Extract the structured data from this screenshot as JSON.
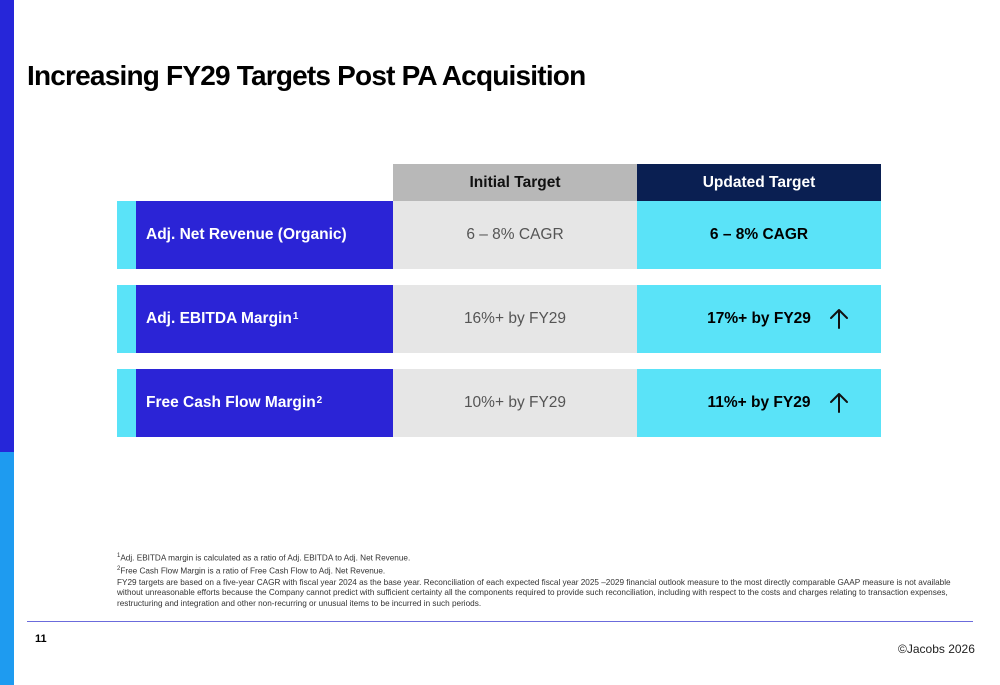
{
  "title": "Increasing FY29 Targets Post PA Acquisition",
  "columns": {
    "initial": "Initial Target",
    "updated": "Updated Target"
  },
  "rows": [
    {
      "label": "Adj. Net Revenue (Organic)",
      "sup": "",
      "initial": "6 – 8% CAGR",
      "updated": "6 – 8% CAGR",
      "arrow": false
    },
    {
      "label": "Adj. EBITDA Margin",
      "sup": "1",
      "initial": "16%+ by FY29",
      "updated": "17%+ by FY29",
      "arrow": true,
      "arrow_icon": "up-arrow-icon"
    },
    {
      "label": "Free Cash Flow Margin",
      "sup": "2",
      "initial": "10%+ by FY29",
      "updated": "11%+ by FY29",
      "arrow": true,
      "arrow_icon": "up-arrow-icon"
    }
  ],
  "footnotes": {
    "note1_mark": "1",
    "note1": "Adj. EBITDA margin is calculated as a ratio of Adj. EBITDA to Adj. Net Revenue.",
    "note2_mark": "2",
    "note2": "Free Cash Flow Margin is a ratio of Free Cash Flow to Adj. Net Revenue.",
    "note3": "FY29 targets are based on a five-year CAGR with fiscal year 2024 as the base year. Reconciliation of each expected fiscal year 2025 –2029 financial outlook measure to the most directly comparable GAAP measure is not available without unreasonable efforts because the Company cannot predict with sufficient certainty all the components required to provide such reconciliation, including with respect to the costs and charges relating to transaction expenses, restructuring and integration and other non-recurring or unusual items to be incurred in such periods."
  },
  "page_number": "11",
  "copyright": "©Jacobs 2026",
  "colors": {
    "brand_blue": "#2b24d6",
    "accent_cyan": "#5ae3f8",
    "navy": "#0a1f52",
    "side_light_blue": "#1e9bf0"
  }
}
